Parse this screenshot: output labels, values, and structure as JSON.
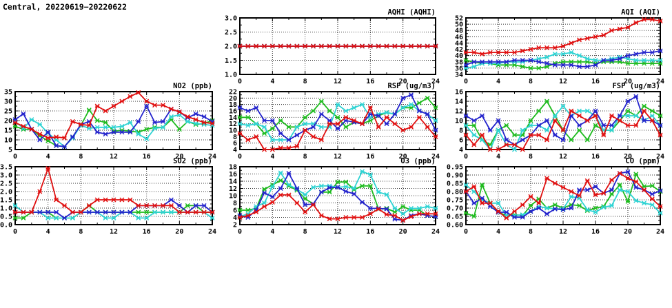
{
  "page_title": "Central, 20220619−20220622",
  "colors": {
    "red": "#e01010",
    "blue": "#2424cc",
    "green": "#1fbb1f",
    "cyan": "#2fd3d3",
    "axis": "#000000",
    "grid": "#333333",
    "background": "#ffffff"
  },
  "chart_data": [
    {
      "type": "line",
      "title": "AQHI (AQHI)",
      "panel": {
        "row": 0,
        "col": 1
      },
      "ylim": [
        1.0,
        3.0
      ],
      "ytick_step": 0.5,
      "ytick_decimals": 1,
      "xlim": [
        0,
        24
      ],
      "xticks": [
        0,
        4,
        8,
        12,
        16,
        20,
        24
      ],
      "x_minor_step": 2,
      "grid": "dotted",
      "legend": "none",
      "series": [
        {
          "name": "green",
          "values": [
            2,
            2,
            2,
            2,
            2,
            2,
            2,
            2,
            2,
            2,
            2,
            2,
            2,
            2,
            2,
            2,
            2,
            2,
            2,
            2,
            2,
            2,
            2,
            2,
            2
          ]
        },
        {
          "name": "cyan",
          "values": [
            2,
            2,
            2,
            2,
            2,
            2,
            2,
            2,
            2,
            2,
            2,
            2,
            2,
            2,
            2,
            2,
            2,
            2,
            2,
            2,
            2,
            2,
            2,
            2,
            2
          ]
        },
        {
          "name": "blue",
          "values": [
            2,
            2,
            2,
            2,
            2,
            2,
            2,
            2,
            2,
            2,
            2,
            2,
            2,
            2,
            2,
            2,
            2,
            2,
            2,
            2,
            2,
            2,
            2,
            2,
            2
          ]
        },
        {
          "name": "red",
          "values": [
            2,
            2,
            2,
            2,
            2,
            2,
            2,
            2,
            2,
            2,
            2,
            2,
            2,
            2,
            2,
            2,
            2,
            2,
            2,
            2,
            2,
            2,
            2,
            2,
            2
          ]
        }
      ]
    },
    {
      "type": "line",
      "title": "AQI (AQI)",
      "panel": {
        "row": 0,
        "col": 2
      },
      "ylim": [
        34,
        52
      ],
      "ytick_step": 2,
      "ytick_decimals": 0,
      "xlim": [
        0,
        24
      ],
      "xticks": [
        0,
        4,
        8,
        12,
        16,
        20,
        24
      ],
      "x_minor_step": 2,
      "grid": "dotted",
      "legend": "none",
      "series": [
        {
          "name": "green",
          "values": [
            38.5,
            38,
            37.5,
            37.5,
            37,
            37,
            37,
            36.5,
            36,
            36,
            36.5,
            37.5,
            38,
            38,
            38,
            38,
            37.5,
            38,
            38,
            38,
            37.5,
            37.5,
            37.5,
            37.5,
            37.5
          ]
        },
        {
          "name": "cyan",
          "values": [
            36,
            36.5,
            37.5,
            37.5,
            37.5,
            38,
            38,
            38,
            38.5,
            39,
            39.5,
            40.5,
            40.5,
            41,
            40,
            39,
            38.5,
            38.5,
            39,
            39.5,
            39,
            38.5,
            38.5,
            38.5,
            38.5
          ]
        },
        {
          "name": "blue",
          "values": [
            37,
            38,
            38,
            38,
            38,
            38,
            38.5,
            38.5,
            38.5,
            38,
            37.5,
            37,
            37,
            37,
            36.5,
            36.5,
            37,
            38.5,
            38.5,
            39,
            40,
            40.5,
            41,
            41,
            41.5
          ]
        },
        {
          "name": "red",
          "values": [
            41,
            41,
            40.5,
            41,
            41,
            41,
            41,
            41.5,
            42,
            42.5,
            42.5,
            42.5,
            43,
            44,
            45,
            45.5,
            46,
            46.5,
            48,
            48.5,
            49,
            50.5,
            51.5,
            51.5,
            51
          ]
        }
      ]
    },
    {
      "type": "line",
      "title": "NO2 (ppb)",
      "panel": {
        "row": 1,
        "col": 0
      },
      "ylim": [
        5,
        35
      ],
      "ytick_step": 5,
      "ytick_decimals": 0,
      "xlim": [
        0,
        24
      ],
      "xticks": [
        0,
        4,
        8,
        12,
        16,
        20,
        24
      ],
      "x_minor_step": 2,
      "grid": "dotted",
      "legend": "none",
      "series": [
        {
          "name": "green",
          "values": [
            17,
            15.5,
            15.5,
            12,
            9.5,
            7,
            6.5,
            11.5,
            17.5,
            25.5,
            20,
            19,
            14.5,
            15,
            14.5,
            14,
            15.5,
            16.5,
            16.5,
            20.5,
            15.5,
            19.5,
            18,
            18.5,
            20
          ]
        },
        {
          "name": "cyan",
          "values": [
            19.5,
            16,
            20.5,
            18,
            13.5,
            10,
            6.5,
            11,
            17.5,
            16,
            16.5,
            16.5,
            16.5,
            17,
            19,
            13,
            10.5,
            16,
            16.5,
            22,
            23,
            19.5,
            18.5,
            18,
            17.5
          ]
        },
        {
          "name": "blue",
          "values": [
            20.5,
            23.5,
            15.5,
            10,
            14,
            7,
            6.5,
            11.5,
            18,
            19.5,
            14,
            13,
            14,
            14,
            14,
            19.5,
            27.5,
            19,
            19.5,
            26,
            24.5,
            21.5,
            23.5,
            22,
            19.5
          ]
        },
        {
          "name": "red",
          "values": [
            19,
            17,
            15.5,
            13,
            11,
            11.5,
            11,
            19.5,
            18,
            17.5,
            27.5,
            25,
            27.5,
            30,
            32.5,
            34.5,
            30,
            28,
            28,
            26,
            24.5,
            22,
            20.5,
            19,
            18.5
          ]
        }
      ]
    },
    {
      "type": "line",
      "title": "RSP (ug/m3)",
      "panel": {
        "row": 1,
        "col": 1
      },
      "ylim": [
        4,
        22
      ],
      "ytick_step": 2,
      "ytick_decimals": 0,
      "xlim": [
        0,
        24
      ],
      "xticks": [
        0,
        4,
        8,
        12,
        16,
        20,
        24
      ],
      "x_minor_step": 2,
      "grid": "dotted",
      "legend": "none",
      "series": [
        {
          "name": "green",
          "values": [
            14,
            14,
            12,
            9,
            10.5,
            13,
            11,
            11,
            14,
            16,
            19,
            16,
            14,
            11,
            12.5,
            12,
            13,
            14.5,
            15.5,
            15,
            17,
            17,
            18.5,
            20,
            17
          ]
        },
        {
          "name": "cyan",
          "values": [
            12,
            11.5,
            12,
            11,
            7,
            7,
            7,
            11,
            12,
            12,
            11,
            11,
            18,
            16,
            17,
            18,
            14,
            15,
            15.5,
            15,
            17,
            18,
            16,
            15,
            13
          ]
        },
        {
          "name": "blue",
          "values": [
            17,
            16,
            17,
            13,
            13,
            9,
            7,
            8.5,
            10,
            11,
            15,
            13,
            10.5,
            13,
            12.5,
            12,
            15,
            14.5,
            12,
            15,
            20,
            21,
            16,
            15,
            10
          ]
        },
        {
          "name": "red",
          "values": [
            9,
            7,
            8,
            4,
            4,
            4.5,
            4.5,
            5,
            10,
            8,
            7,
            12,
            12,
            14,
            13,
            12,
            17,
            11,
            14,
            12,
            10,
            11,
            14,
            11,
            8
          ]
        }
      ]
    },
    {
      "type": "line",
      "title": "FSP (ug/m3)",
      "panel": {
        "row": 1,
        "col": 2
      },
      "ylim": [
        4,
        16
      ],
      "ytick_step": 2,
      "ytick_decimals": 0,
      "xlim": [
        0,
        24
      ],
      "xticks": [
        0,
        4,
        8,
        12,
        16,
        20,
        24
      ],
      "x_minor_step": 2,
      "grid": "dotted",
      "legend": "none",
      "series": [
        {
          "name": "green",
          "values": [
            9,
            9,
            6,
            5,
            8,
            9,
            7,
            7,
            10,
            12,
            14,
            11,
            8,
            6,
            8,
            6,
            9,
            8,
            8,
            10,
            12,
            11,
            13,
            12,
            11
          ]
        },
        {
          "name": "cyan",
          "values": [
            9,
            7,
            6,
            4,
            8,
            5,
            4,
            8,
            9,
            9,
            8,
            11,
            13,
            11,
            12,
            12,
            11,
            8,
            8,
            11,
            11,
            11,
            10,
            11,
            9
          ]
        },
        {
          "name": "blue",
          "values": [
            11,
            10,
            11,
            8,
            10,
            6,
            5,
            6,
            7,
            9,
            10,
            7,
            6,
            11,
            9,
            10,
            12,
            9,
            9,
            11,
            14,
            15,
            10,
            10,
            9
          ]
        },
        {
          "name": "red",
          "values": [
            7,
            5,
            7,
            4,
            4,
            5,
            5,
            4,
            7,
            7,
            6,
            10,
            8,
            12,
            11,
            10,
            11,
            7,
            11,
            10,
            9,
            9,
            12,
            10,
            7
          ]
        }
      ]
    },
    {
      "type": "line",
      "title": "SO2 (ppb)",
      "panel": {
        "row": 2,
        "col": 0
      },
      "ylim": [
        0.0,
        3.5
      ],
      "ytick_step": 0.5,
      "ytick_decimals": 1,
      "xlim": [
        0,
        24
      ],
      "xticks": [
        0,
        4,
        8,
        12,
        16,
        20,
        24
      ],
      "x_minor_step": 2,
      "grid": "dotted",
      "legend": "none",
      "series": [
        {
          "name": "green",
          "values": [
            0.4,
            0.4,
            0.75,
            0.75,
            0.75,
            0.4,
            0.4,
            0.4,
            0.75,
            1.15,
            0.75,
            0.75,
            0.75,
            0.75,
            0.75,
            0.75,
            0.75,
            0.75,
            0.75,
            0.75,
            0.75,
            1.15,
            1.15,
            0.75,
            0.75
          ]
        },
        {
          "name": "cyan",
          "values": [
            1.15,
            0.75,
            0.75,
            0.75,
            0.4,
            0.4,
            0.4,
            0.4,
            0.75,
            0.75,
            0.75,
            0.4,
            0.4,
            0.75,
            0.75,
            0.4,
            0.4,
            0.75,
            0.75,
            0.75,
            0.75,
            0.75,
            0.75,
            0.75,
            0.4
          ]
        },
        {
          "name": "blue",
          "values": [
            0.75,
            0.75,
            0.75,
            0.75,
            0.75,
            0.75,
            0.4,
            0.75,
            0.75,
            0.75,
            0.75,
            0.75,
            0.75,
            0.75,
            0.75,
            1.15,
            1.15,
            1.15,
            1.15,
            1.5,
            1.15,
            0.75,
            1.15,
            1.15,
            0.75
          ]
        },
        {
          "name": "red",
          "values": [
            0.75,
            0.75,
            0.75,
            2.0,
            3.4,
            1.5,
            1.15,
            0.75,
            0.75,
            1.15,
            1.5,
            1.5,
            1.5,
            1.5,
            1.5,
            1.15,
            1.15,
            1.15,
            1.15,
            1.15,
            0.75,
            0.75,
            0.75,
            0.75,
            0.75
          ]
        }
      ]
    },
    {
      "type": "line",
      "title": "O3 (ppb)",
      "panel": {
        "row": 2,
        "col": 1
      },
      "ylim": [
        2,
        18
      ],
      "ytick_step": 2,
      "ytick_decimals": 0,
      "xlim": [
        0,
        24
      ],
      "xticks": [
        0,
        4,
        8,
        12,
        16,
        20,
        24
      ],
      "x_minor_step": 2,
      "grid": "dotted",
      "legend": "none",
      "series": [
        {
          "name": "green",
          "values": [
            6,
            6,
            6.5,
            11.8,
            13,
            14.2,
            12.7,
            11.5,
            9.2,
            7.7,
            11,
            11,
            13.8,
            13.8,
            11.7,
            12.7,
            12.7,
            6.3,
            6.5,
            5.5,
            7,
            6,
            6,
            4.5,
            4.2
          ]
        },
        {
          "name": "cyan",
          "values": [
            4.2,
            5,
            7,
            8,
            12.5,
            16.3,
            13,
            11.8,
            10.3,
            12.3,
            12.7,
            12.7,
            12.3,
            12.5,
            12,
            16.7,
            15.8,
            11,
            10.3,
            6.5,
            5,
            6.5,
            6.5,
            7,
            6.5
          ]
        },
        {
          "name": "blue",
          "values": [
            4.5,
            4,
            6,
            10.8,
            9.7,
            12,
            16.2,
            12,
            7.5,
            7.7,
            11,
            12.2,
            12.3,
            11.2,
            10.5,
            8.2,
            6.5,
            6.5,
            6.3,
            3.5,
            3.2,
            4.5,
            5,
            4.5,
            4.2
          ]
        },
        {
          "name": "red",
          "values": [
            4,
            4.5,
            5.5,
            7,
            8.2,
            10.2,
            10.2,
            8,
            5.5,
            7.5,
            4.5,
            3.6,
            3.6,
            4,
            4,
            4,
            5,
            6.3,
            4.8,
            4.5,
            3.2,
            4.2,
            5,
            5,
            5
          ]
        }
      ]
    },
    {
      "type": "line",
      "title": "CO (ppm)",
      "panel": {
        "row": 2,
        "col": 2
      },
      "ylim": [
        0.6,
        0.95
      ],
      "ytick_step": 0.05,
      "ytick_decimals": 2,
      "xlim": [
        0,
        24
      ],
      "xticks": [
        0,
        4,
        8,
        12,
        16,
        20,
        24
      ],
      "x_minor_step": 2,
      "grid": "dotted",
      "legend": "none",
      "series": [
        {
          "name": "green",
          "values": [
            0.67,
            0.65,
            0.84,
            0.73,
            0.675,
            0.655,
            0.66,
            0.655,
            0.715,
            0.755,
            0.7,
            0.72,
            0.7,
            0.72,
            0.715,
            0.685,
            0.7,
            0.71,
            0.785,
            0.84,
            0.74,
            0.905,
            0.83,
            0.835,
            0.8
          ]
        },
        {
          "name": "cyan",
          "values": [
            0.84,
            0.8,
            0.75,
            0.73,
            0.73,
            0.655,
            0.655,
            0.66,
            0.68,
            0.71,
            0.7,
            0.695,
            0.695,
            0.77,
            0.76,
            0.69,
            0.675,
            0.705,
            0.715,
            0.81,
            0.8,
            0.745,
            0.73,
            0.72,
            0.67
          ]
        },
        {
          "name": "blue",
          "values": [
            0.8,
            0.73,
            0.76,
            0.71,
            0.675,
            0.675,
            0.645,
            0.645,
            0.68,
            0.7,
            0.665,
            0.695,
            0.69,
            0.7,
            0.81,
            0.81,
            0.83,
            0.79,
            0.81,
            0.91,
            0.92,
            0.825,
            0.81,
            0.785,
            0.805
          ]
        },
        {
          "name": "red",
          "values": [
            0.8,
            0.83,
            0.73,
            0.73,
            0.68,
            0.64,
            0.68,
            0.72,
            0.77,
            0.73,
            0.88,
            0.85,
            0.825,
            0.8,
            0.775,
            0.865,
            0.78,
            0.79,
            0.87,
            0.91,
            0.88,
            0.86,
            0.81,
            0.755,
            0.71
          ]
        }
      ]
    }
  ]
}
